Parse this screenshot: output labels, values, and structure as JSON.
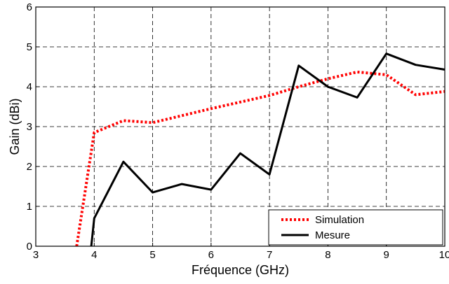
{
  "chart_data": {
    "type": "line",
    "title": "",
    "xlabel": "Fréquence (GHz)",
    "ylabel": "Gain (dBi)",
    "xlim": [
      3,
      10
    ],
    "ylim": [
      0,
      6
    ],
    "xticks": [
      "3",
      "4",
      "5",
      "6",
      "7",
      "8",
      "9",
      "10"
    ],
    "yticks": [
      "0",
      "1",
      "2",
      "3",
      "4",
      "5",
      "6"
    ],
    "grid": true,
    "legend_position": "bottom-right",
    "series": [
      {
        "name": "Simulation",
        "color": "#ff0000",
        "style": "dotted",
        "x": [
          3.7,
          4.0,
          4.5,
          5.0,
          6.0,
          7.0,
          7.5,
          8.0,
          8.5,
          9.0,
          9.5,
          10.0
        ],
        "y": [
          0,
          2.85,
          3.15,
          3.1,
          3.45,
          3.78,
          4.0,
          4.2,
          4.37,
          4.3,
          3.8,
          3.88
        ]
      },
      {
        "name": "Mesure",
        "color": "#000000",
        "style": "solid",
        "x": [
          3.95,
          4.0,
          4.5,
          5.0,
          5.5,
          6.0,
          6.5,
          7.0,
          7.5,
          8.0,
          8.5,
          9.0,
          9.5,
          10.0
        ],
        "y": [
          0,
          0.7,
          2.12,
          1.35,
          1.56,
          1.42,
          2.33,
          1.8,
          4.53,
          4.0,
          3.73,
          4.83,
          4.55,
          4.43
        ]
      }
    ]
  }
}
